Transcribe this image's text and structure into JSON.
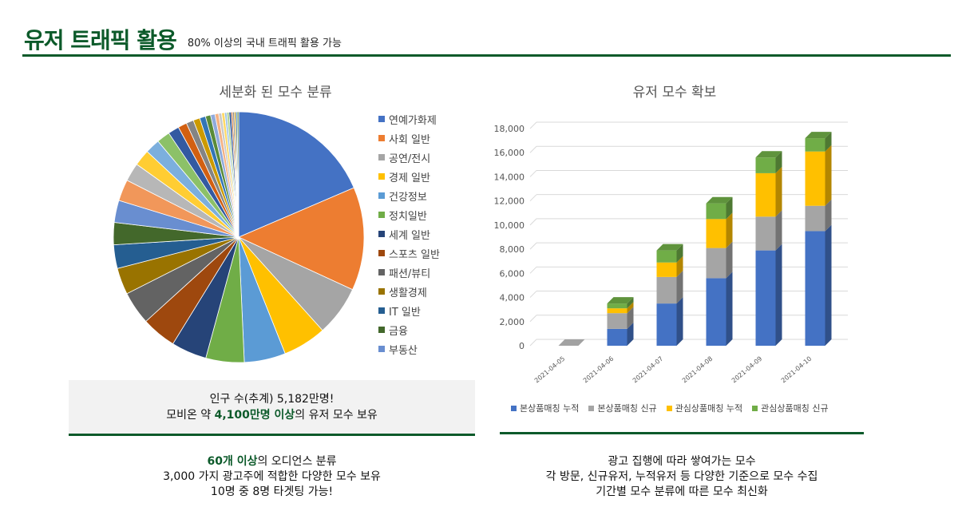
{
  "header": {
    "title": "유저 트래픽 활용",
    "subtitle": "80% 이상의 국내 트래픽 활용 가능"
  },
  "pie_info": {
    "line1": "인구 수(추계) 5,182만명!",
    "line2_pre": "모비온 약 ",
    "line2_accent": "4,100만명 이상",
    "line2_post": "의 유저 모수 보유"
  },
  "pie_desc": {
    "line1_accent": "60개 이상",
    "line1_post": "의 오디언스 분류",
    "line2": "3,000 가지 광고주에 적합한 다양한 모수 보유",
    "line3": "10명 중 8명 타겟팅 가능!"
  },
  "bar_desc": {
    "line1": "광고 집행에 따라 쌓여가는 모수",
    "line2": "각 방문, 신규유저, 누적유저 등 다양한 기준으로 모수 수집",
    "line3": "기간별 모수 분류에 따른 모수 최신화"
  },
  "chart_data": [
    {
      "type": "pie",
      "title": "세분화 된 모수 분류",
      "legend_position": "right",
      "legend": [
        "연예가화제",
        "사회 일반",
        "공연/전시",
        "경제 일반",
        "건강정보",
        "정치일반",
        "세계 일반",
        "스포츠 일반",
        "패션/뷰티",
        "생활경제",
        "IT 일반",
        "금융",
        "부동산"
      ],
      "slices": [
        {
          "label": "연예가화제",
          "value": 19.5,
          "color": "#4472c4"
        },
        {
          "label": "사회 일반",
          "value": 14.0,
          "color": "#ed7d31"
        },
        {
          "label": "공연/전시",
          "value": 6.8,
          "color": "#a5a5a5"
        },
        {
          "label": "경제 일반",
          "value": 5.9,
          "color": "#ffc000"
        },
        {
          "label": "건강정보",
          "value": 5.6,
          "color": "#5b9bd5"
        },
        {
          "label": "정치일반",
          "value": 5.2,
          "color": "#70ad47"
        },
        {
          "label": "세계 일반",
          "value": 4.8,
          "color": "#264478"
        },
        {
          "label": "스포츠 일반",
          "value": 4.7,
          "color": "#9e480e"
        },
        {
          "label": "패션/뷰티",
          "value": 4.5,
          "color": "#636363"
        },
        {
          "label": "생활경제",
          "value": 3.6,
          "color": "#997300"
        },
        {
          "label": "IT 일반",
          "value": 3.2,
          "color": "#255e91"
        },
        {
          "label": "금융",
          "value": 3.0,
          "color": "#43682b"
        },
        {
          "label": "부동산",
          "value": 3.0,
          "color": "#698ed0"
        },
        {
          "label": "",
          "value": 2.9,
          "color": "#f1975a"
        },
        {
          "label": "",
          "value": 2.5,
          "color": "#b7b7b7"
        },
        {
          "label": "",
          "value": 2.2,
          "color": "#ffcd33"
        },
        {
          "label": "",
          "value": 2.0,
          "color": "#7cafdd"
        },
        {
          "label": "",
          "value": 1.8,
          "color": "#8cc168"
        },
        {
          "label": "",
          "value": 1.5,
          "color": "#335aa1"
        },
        {
          "label": "",
          "value": 1.2,
          "color": "#d26012"
        },
        {
          "label": "",
          "value": 1.0,
          "color": "#848484"
        },
        {
          "label": "",
          "value": 0.9,
          "color": "#cc9a00"
        },
        {
          "label": "",
          "value": 0.8,
          "color": "#3275b6"
        },
        {
          "label": "",
          "value": 0.7,
          "color": "#5a8b39"
        },
        {
          "label": "",
          "value": 0.6,
          "color": "#8faadc"
        },
        {
          "label": "",
          "value": 0.5,
          "color": "#f4b183"
        },
        {
          "label": "",
          "value": 0.4,
          "color": "#c9c9c9"
        },
        {
          "label": "",
          "value": 0.4,
          "color": "#ffd966"
        },
        {
          "label": "",
          "value": 0.3,
          "color": "#9dc3e6"
        },
        {
          "label": "",
          "value": 0.3,
          "color": "#a9d18e"
        },
        {
          "label": "",
          "value": 0.3,
          "color": "#2f5597"
        },
        {
          "label": "",
          "value": 0.2,
          "color": "#c55a11"
        },
        {
          "label": "",
          "value": 0.2,
          "color": "#7f7f7f"
        },
        {
          "label": "",
          "value": 0.2,
          "color": "#bf9000"
        },
        {
          "label": "",
          "value": 0.2,
          "color": "#2e75b6"
        },
        {
          "label": "",
          "value": 0.2,
          "color": "#548235"
        }
      ]
    },
    {
      "type": "bar",
      "stacked": true,
      "three_d": true,
      "title": "유저 모수 확보",
      "categories": [
        "2021-04-05",
        "2021-04-06",
        "2021-04-07",
        "2021-04-08",
        "2021-04-09",
        "2021-04-10"
      ],
      "ylim": [
        0,
        18000
      ],
      "yticks": [
        "18,000",
        "16,000",
        "14,000",
        "12,000",
        "10,000",
        "8,000",
        "6,000",
        "4,000",
        "2,000",
        "0"
      ],
      "grid": true,
      "legend_position": "bottom",
      "series": [
        {
          "name": "본상품매칭 누적",
          "color": "#4472c4",
          "values": [
            0,
            1400,
            3500,
            5600,
            7900,
            9500
          ]
        },
        {
          "name": "본상품매칭 신규",
          "color": "#a5a5a5",
          "values": [
            0,
            1300,
            2200,
            2500,
            2800,
            2100
          ]
        },
        {
          "name": "관심상품매칭 누적",
          "color": "#ffc000",
          "values": [
            0,
            400,
            1200,
            2400,
            3600,
            4500
          ]
        },
        {
          "name": "관심상품매칭 신규",
          "color": "#70ad47",
          "values": [
            0,
            400,
            1000,
            1300,
            1300,
            1100
          ]
        }
      ]
    }
  ]
}
